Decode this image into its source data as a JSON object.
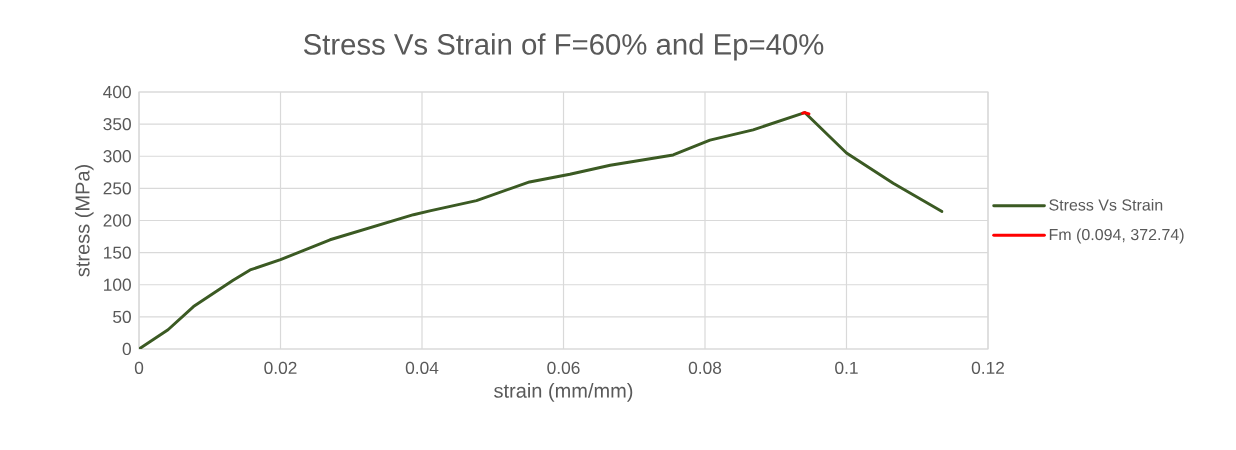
{
  "chart_data": {
    "type": "line",
    "title": "Stress Vs Strain of F=60% and Ep=40%",
    "xlabel": "strain (mm/mm)",
    "ylabel": "stress (MPa)",
    "xlim": [
      0,
      0.12
    ],
    "xticks": [
      0,
      0.02,
      0.04,
      0.06,
      0.08,
      0.1,
      0.12
    ],
    "ylim": [
      0,
      400
    ],
    "yticks": [
      0,
      50,
      100,
      150,
      200,
      250,
      300,
      350,
      400
    ],
    "grid": true,
    "legend": "right",
    "series": [
      {
        "name": "Stress Vs Strain",
        "color": "#3b5a23",
        "x": [
          0,
          0.0041,
          0.0077,
          0.0133,
          0.0157,
          0.02,
          0.027,
          0.0388,
          0.0411,
          0.0477,
          0.0552,
          0.0609,
          0.0666,
          0.0755,
          0.0807,
          0.0868,
          0.0941,
          0.1,
          0.1066,
          0.1135
        ],
        "values": [
          0,
          30,
          66,
          107,
          123,
          139,
          170,
          209,
          215,
          231,
          260,
          272,
          286,
          302,
          325,
          341,
          368,
          305,
          258,
          214
        ]
      },
      {
        "name": "Fm (0.094, 372.74)",
        "color": "#ff0000",
        "x": [
          0.0938,
          0.0941,
          0.0947
        ],
        "values": [
          367,
          368,
          366
        ]
      }
    ]
  }
}
